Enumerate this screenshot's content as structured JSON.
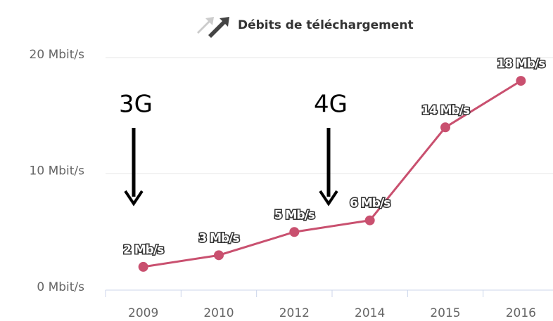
{
  "chart_data": {
    "type": "line",
    "title": "Débits de téléchargement",
    "categories": [
      "2009",
      "2010",
      "2012",
      "2014",
      "2015",
      "2016"
    ],
    "series": [
      {
        "name": null,
        "color": "#c9506f",
        "values": [
          2,
          3,
          5,
          6,
          14,
          18
        ],
        "value_labels": [
          "2 Mb/s",
          "3 Mb/s",
          "5 Mb/s",
          "6 Mb/s",
          "14 Mb/s",
          "18 Mb/s"
        ]
      }
    ],
    "ylim": [
      0,
      20
    ],
    "yticks": [
      {
        "value": 0,
        "label": "0 Mbit/s"
      },
      {
        "value": 10,
        "label": "10 Mbit/s"
      },
      {
        "value": 20,
        "label": "20 Mbit/s"
      }
    ],
    "grid": true,
    "annotations": [
      "3G",
      "4G"
    ]
  }
}
